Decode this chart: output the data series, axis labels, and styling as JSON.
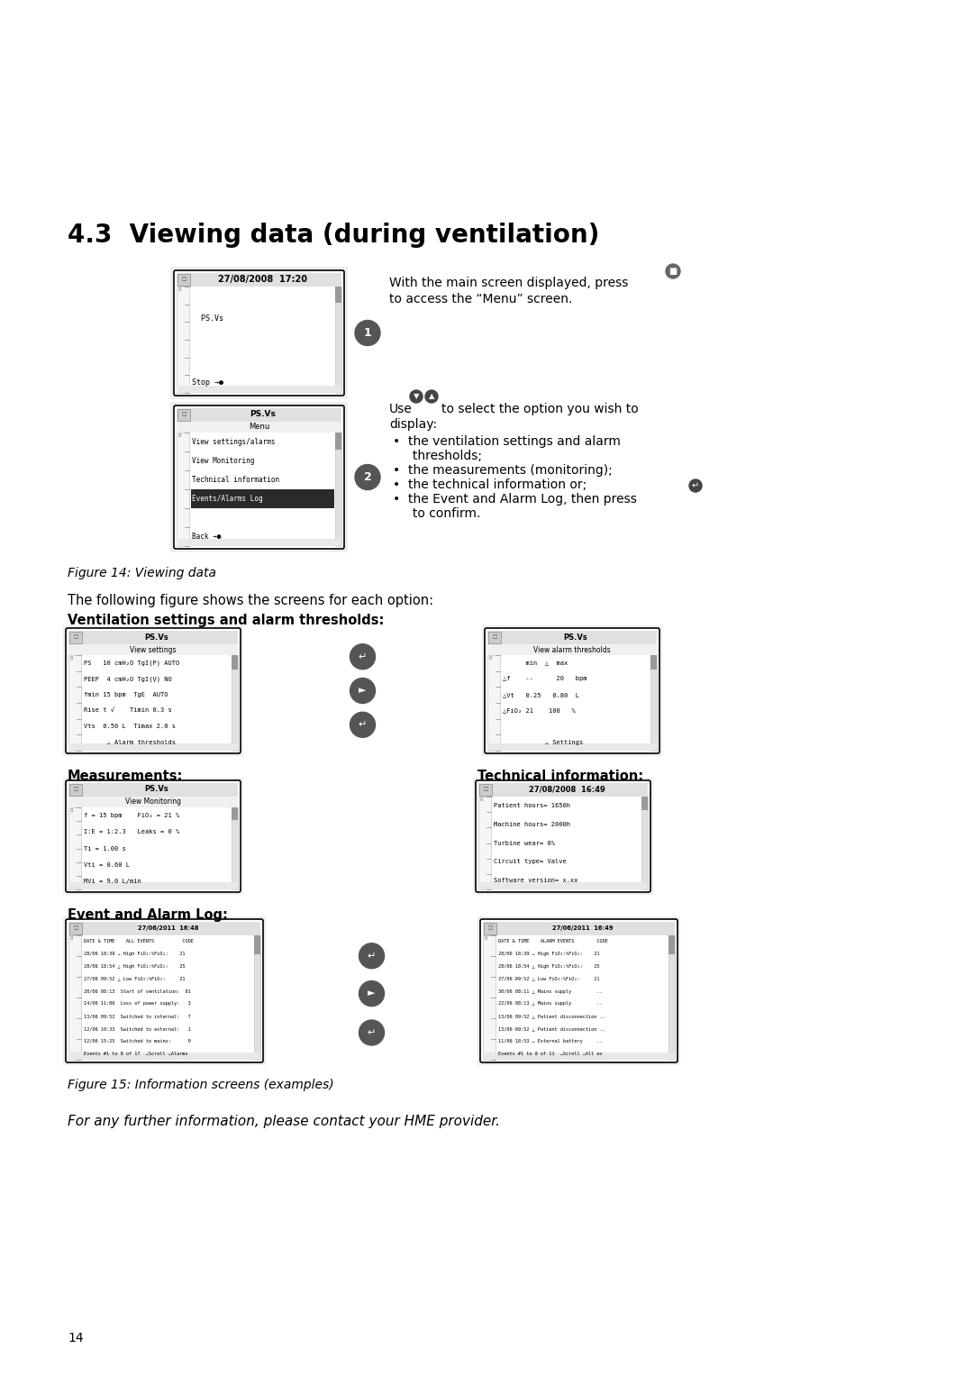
{
  "title": "4.3  Viewing data (during ventilation)",
  "background_color": "#ffffff",
  "text_color": "#000000",
  "page_number": "14",
  "content": {
    "step1_text_a": "With the main screen displayed, press",
    "step1_text_b": "to access the “Menu” screen.",
    "step2_intro": "Use      to select the option you wish to",
    "step2_display": "display:",
    "bullet1a": "the ventilation settings and alarm",
    "bullet1b": "thresholds;",
    "bullet2": "the measurements (monitoring);",
    "bullet3": "the technical information or;",
    "bullet4a": "the Event and Alarm Log, then press",
    "bullet4b": "to confirm.",
    "fig14_caption": "Figure 14: Viewing data",
    "following_text": "The following figure shows the screens for each option:",
    "vent_label": "Ventilation settings and alarm thresholds:",
    "measurements_label": "Measurements:",
    "tech_label": "Technical information:",
    "event_label": "Event and Alarm Log:",
    "fig15_caption": "Figure 15: Information screens (examples)",
    "footer_text": "For any further information, please contact your HME provider."
  }
}
